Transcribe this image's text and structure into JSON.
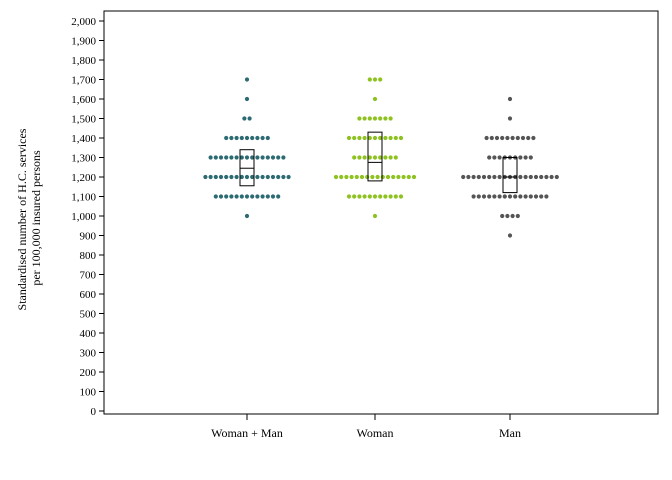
{
  "chart_data": {
    "type": "scatter",
    "subtype": "dot-plot-with-box",
    "ylabel_lines": [
      "Standardised number of H.C. services",
      "per 100,000 insured persons"
    ],
    "ylim": [
      0,
      2000
    ],
    "yticks": [
      0,
      100,
      200,
      300,
      400,
      500,
      600,
      700,
      800,
      900,
      1000,
      1100,
      1200,
      1300,
      1400,
      1500,
      1600,
      1700,
      1800,
      1900,
      2000
    ],
    "ytick_labels": [
      "0",
      "100",
      "200",
      "300",
      "400",
      "500",
      "600",
      "700",
      "800",
      "900",
      "1,000",
      "1,100",
      "1,200",
      "1,300",
      "1,400",
      "1,500",
      "1,600",
      "1,700",
      "1,800",
      "1,900",
      "2,000"
    ],
    "categories": [
      "Woman + Man",
      "Woman",
      "Man"
    ],
    "grid": false,
    "series": [
      {
        "category": "Woman + Man",
        "color": "#2d6b73",
        "dot_rows": [
          {
            "y": 1700,
            "count": 1
          },
          {
            "y": 1600,
            "count": 1
          },
          {
            "y": 1500,
            "count": 2
          },
          {
            "y": 1400,
            "count": 9
          },
          {
            "y": 1300,
            "count": 15
          },
          {
            "y": 1200,
            "count": 17
          },
          {
            "y": 1100,
            "count": 13
          },
          {
            "y": 1000,
            "count": 1
          }
        ],
        "box": {
          "q1": 1155,
          "median": 1245,
          "q3": 1340
        }
      },
      {
        "category": "Woman",
        "color": "#8dc21f",
        "dot_rows": [
          {
            "y": 1700,
            "count": 3
          },
          {
            "y": 1600,
            "count": 1
          },
          {
            "y": 1500,
            "count": 7
          },
          {
            "y": 1400,
            "count": 11
          },
          {
            "y": 1300,
            "count": 9
          },
          {
            "y": 1200,
            "count": 16
          },
          {
            "y": 1100,
            "count": 11
          },
          {
            "y": 1000,
            "count": 1
          }
        ],
        "box": {
          "q1": 1180,
          "median": 1275,
          "q3": 1430
        }
      },
      {
        "category": "Man",
        "color": "#555555",
        "dot_rows": [
          {
            "y": 1600,
            "count": 1
          },
          {
            "y": 1500,
            "count": 1
          },
          {
            "y": 1400,
            "count": 10
          },
          {
            "y": 1300,
            "count": 9
          },
          {
            "y": 1200,
            "count": 19
          },
          {
            "y": 1100,
            "count": 15
          },
          {
            "y": 1000,
            "count": 4
          },
          {
            "y": 900,
            "count": 1
          }
        ],
        "box": {
          "q1": 1120,
          "median": 1200,
          "q3": 1300
        }
      }
    ]
  }
}
